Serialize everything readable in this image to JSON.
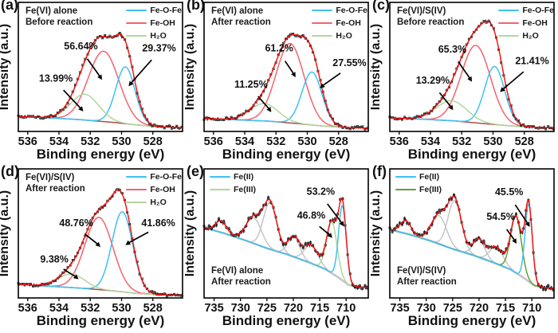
{
  "figure": {
    "xlabel": "Binding energy (eV)",
    "ylabel": "Intensity (a.u.)",
    "background": "#FFFFFF",
    "colors": {
      "envelope_red": "#FF1010",
      "data_black": "#151515",
      "fe_o_fe_cyan": "#3EC1F4",
      "fe_oh_pink": "#F2646E",
      "h2o_light_green": "#B2D79E",
      "fe2_cyan": "#3EC1F4",
      "fe3_light_green": "#B2D79E",
      "fe3_dark_green": "#5FA03C",
      "o1s_baseline_maroon": "#A84A4A",
      "fe2p_component_gray": "#C6C6C6",
      "fe2p_baseline_gray": "#8B8B8B"
    }
  },
  "chart_data": [
    {
      "id": "a",
      "type": "line",
      "panel_label": "(a)",
      "condition": [
        "Fe(VI) alone",
        "Before reaction"
      ],
      "xlabel": "Binding energy (eV)",
      "ylabel": "Intensity (a.u.)",
      "xlim": [
        536.6,
        526.1
      ],
      "x_ticks": [
        536,
        534,
        532,
        530,
        528
      ],
      "legend": [
        {
          "label": "Fe-O-Fe",
          "color": "#3EC1F4"
        },
        {
          "label": "Fe-OH",
          "color": "#F2646E"
        },
        {
          "label": "H₂O",
          "color": "#B2D79E"
        }
      ],
      "percentages": {
        "Fe-O-Fe": "29.37%",
        "Fe-OH": "56.64%",
        "H₂O": "13.99%"
      },
      "components": [
        {
          "name": "Fe-OH",
          "color": "#F2646E",
          "center": 531.15,
          "height": 0.545,
          "hwhm": 1.15
        },
        {
          "name": "Fe-O-Fe",
          "color": "#3EC1F4",
          "center": 529.75,
          "height": 0.44,
          "hwhm": 0.72
        },
        {
          "name": "H₂O",
          "color": "#B2D79E",
          "center": 532.35,
          "height": 0.2,
          "hwhm": 1.05
        }
      ],
      "baseline": {
        "color": "#A84A4A",
        "width": 1.5,
        "points": [
          [
            536.6,
            0.115
          ],
          [
            534.5,
            0.105
          ],
          [
            532.5,
            0.09
          ],
          [
            530.5,
            0.07
          ],
          [
            529,
            0.05
          ],
          [
            527.5,
            0.035
          ],
          [
            526.1,
            0.03
          ]
        ]
      },
      "envelope_color": "#FF1010",
      "data_color": "#151515",
      "data_style": "squares",
      "annotations": [
        {
          "text": "56.64%",
          "tx": 532.6,
          "ty": 0.66,
          "ax": 531.25,
          "ay": 0.4
        },
        {
          "text": "29.37%",
          "tx": 527.6,
          "ty": 0.645,
          "ax": 529.55,
          "ay": 0.35
        },
        {
          "text": "13.99%",
          "tx": 534.2,
          "ty": 0.41,
          "ax": 532.45,
          "ay": 0.155
        }
      ]
    },
    {
      "id": "b",
      "type": "line",
      "panel_label": "(b)",
      "condition": [
        "Fe(VI) alone",
        "After reaction"
      ],
      "xlabel": "Binding energy (eV)",
      "ylabel": "Intensity (a.u.)",
      "xlim": [
        536.6,
        526.1
      ],
      "x_ticks": [
        536,
        534,
        532,
        530,
        528
      ],
      "legend": [
        {
          "label": "Fe-O-Fe",
          "color": "#3EC1F4"
        },
        {
          "label": "Fe-OH",
          "color": "#F2646E"
        },
        {
          "label": "H₂O",
          "color": "#B2D79E"
        }
      ],
      "percentages": {
        "Fe-O-Fe": "27.55%",
        "Fe-OH": "61.2%",
        "H₂O": "11.25%"
      },
      "components": [
        {
          "name": "Fe-OH",
          "color": "#F2646E",
          "center": 531.1,
          "height": 0.615,
          "hwhm": 1.05
        },
        {
          "name": "Fe-O-Fe",
          "color": "#3EC1F4",
          "center": 529.7,
          "height": 0.41,
          "hwhm": 0.75
        },
        {
          "name": "H₂O",
          "color": "#B2D79E",
          "center": 532.75,
          "height": 0.135,
          "hwhm": 1.05
        }
      ],
      "baseline": {
        "color": "#A84A4A",
        "width": 1.5,
        "points": [
          [
            536.6,
            0.1
          ],
          [
            534.5,
            0.09
          ],
          [
            532.5,
            0.08
          ],
          [
            530.5,
            0.06
          ],
          [
            529,
            0.042
          ],
          [
            527.5,
            0.03
          ],
          [
            526.1,
            0.025
          ]
        ]
      },
      "envelope_color": "#FF1010",
      "data_color": "#151515",
      "data_style": "squares",
      "annotations": [
        {
          "text": "61.2%",
          "tx": 531.8,
          "ty": 0.645,
          "ax": 530.75,
          "ay": 0.42
        },
        {
          "text": "27.55%",
          "tx": 527.3,
          "ty": 0.53,
          "ax": 529.2,
          "ay": 0.335
        },
        {
          "text": "11.25%",
          "tx": 533.6,
          "ty": 0.365,
          "ax": 532.3,
          "ay": 0.15
        }
      ]
    },
    {
      "id": "c",
      "type": "line",
      "panel_label": "(c)",
      "condition": [
        "Fe(VI)/S(IV)",
        "Before reaction"
      ],
      "xlabel": "Binding energy (eV)",
      "ylabel": "Intensity (a.u.)",
      "xlim": [
        536.6,
        526.1
      ],
      "x_ticks": [
        536,
        534,
        532,
        530,
        528
      ],
      "legend": [
        {
          "label": "Fe-O-Fe",
          "color": "#3EC1F4"
        },
        {
          "label": "Fe-OH",
          "color": "#F2646E"
        },
        {
          "label": "H₂O",
          "color": "#B2D79E"
        }
      ],
      "percentages": {
        "Fe-O-Fe": "21.41%",
        "Fe-OH": "65.3%",
        "H₂O": "13.29%"
      },
      "components": [
        {
          "name": "Fe-OH",
          "color": "#F2646E",
          "center": 531.1,
          "height": 0.6,
          "hwhm": 1.1
        },
        {
          "name": "Fe-O-Fe",
          "color": "#3EC1F4",
          "center": 529.9,
          "height": 0.45,
          "hwhm": 0.75
        },
        {
          "name": "H₂O",
          "color": "#B2D79E",
          "center": 532.65,
          "height": 0.155,
          "hwhm": 1.15
        }
      ],
      "baseline": {
        "color": "#A84A4A",
        "width": 1.5,
        "points": [
          [
            536.6,
            0.105
          ],
          [
            534.5,
            0.095
          ],
          [
            532.5,
            0.082
          ],
          [
            530.5,
            0.06
          ],
          [
            529,
            0.045
          ],
          [
            527.5,
            0.032
          ],
          [
            526.1,
            0.028
          ]
        ]
      },
      "envelope_color": "#FF1010",
      "data_color": "#151515",
      "data_style": "squares",
      "annotations": [
        {
          "text": "65.3%",
          "tx": 532.6,
          "ty": 0.635,
          "ax": 531.35,
          "ay": 0.385
        },
        {
          "text": "21.41%",
          "tx": 527.5,
          "ty": 0.545,
          "ax": 529.55,
          "ay": 0.305
        },
        {
          "text": "13.29%",
          "tx": 533.85,
          "ty": 0.395,
          "ax": 532.55,
          "ay": 0.165
        }
      ]
    },
    {
      "id": "d",
      "type": "line",
      "panel_label": "(d)",
      "condition": [
        "Fe(VI)/S(IV)",
        "After reaction"
      ],
      "xlabel": "Binding energy (eV)",
      "ylabel": "Intensity (a.u.)",
      "xlim": [
        536.6,
        526.1
      ],
      "x_ticks": [
        536,
        534,
        532,
        530,
        528
      ],
      "legend": [
        {
          "label": "Fe-O-Fe",
          "color": "#3EC1F4"
        },
        {
          "label": "Fe-OH",
          "color": "#F2646E"
        },
        {
          "label": "H₂O",
          "color": "#B2D79E"
        }
      ],
      "percentages": {
        "Fe-O-Fe": "41.86%",
        "Fe-OH": "48.76%",
        "H₂O": "9.38%"
      },
      "components": [
        {
          "name": "Fe-OH",
          "color": "#F2646E",
          "center": 531.45,
          "height": 0.56,
          "hwhm": 1.05
        },
        {
          "name": "Fe-O-Fe",
          "color": "#3EC1F4",
          "center": 529.95,
          "height": 0.62,
          "hwhm": 0.78
        },
        {
          "name": "H₂O",
          "color": "#B2D79E",
          "center": 533.2,
          "height": 0.105,
          "hwhm": 1.0
        }
      ],
      "baseline": {
        "color": "#A84A4A",
        "width": 1.5,
        "points": [
          [
            536.6,
            0.105
          ],
          [
            534.5,
            0.09
          ],
          [
            532.5,
            0.075
          ],
          [
            530.5,
            0.055
          ],
          [
            529,
            0.035
          ],
          [
            527.5,
            0.025
          ],
          [
            526.1,
            0.02
          ]
        ]
      },
      "envelope_color": "#FF1010",
      "data_color": "#151515",
      "data_style": "squares",
      "annotations": [
        {
          "text": "48.76%",
          "tx": 532.9,
          "ty": 0.58,
          "ax": 531.35,
          "ay": 0.395
        },
        {
          "text": "41.86%",
          "tx": 527.65,
          "ty": 0.58,
          "ax": 529.75,
          "ay": 0.41
        },
        {
          "text": "9.38%",
          "tx": 534.3,
          "ty": 0.3,
          "ax": 532.75,
          "ay": 0.145
        }
      ]
    },
    {
      "id": "e",
      "type": "line",
      "panel_label": "(e)",
      "condition": [
        "Fe(VI) alone",
        "After reaction"
      ],
      "xlabel": "Binding energy (eV)",
      "ylabel": "Intensity (a.u.)",
      "xlim": [
        736.9,
        705.8
      ],
      "x_ticks": [
        735,
        730,
        725,
        720,
        715,
        710
      ],
      "legend": [
        {
          "label": "Fe(II)",
          "color": "#3EC1F4"
        },
        {
          "label": "Fe(III)",
          "color": "#B2D79E"
        }
      ],
      "percentages": {
        "Fe(II)": "53.2%",
        "Fe(III)": "46.8%"
      },
      "components": [
        {
          "name": "satellite",
          "color": "#C6C6C6",
          "center": 733.7,
          "height": 0.09,
          "hwhm": 1.2
        },
        {
          "name": "satellite",
          "color": "#C6C6C6",
          "center": 727.5,
          "height": 0.2,
          "hwhm": 1.7
        },
        {
          "name": "Fe 2p1/2",
          "color": "#C6C6C6",
          "center": 724.4,
          "height": 0.36,
          "hwhm": 1.5
        },
        {
          "name": "satellite",
          "color": "#C6C6C6",
          "center": 719.9,
          "height": 0.16,
          "hwhm": 1.3
        },
        {
          "name": "satellite",
          "color": "#C6C6C6",
          "center": 716.6,
          "height": 0.14,
          "hwhm": 1.5
        },
        {
          "name": "Fe(III)",
          "color": "#B2D79E",
          "center": 712.7,
          "height": 0.4,
          "hwhm": 1.15
        },
        {
          "name": "Fe(II)",
          "color": "#3EC1F4",
          "center": 710.7,
          "height": 0.58,
          "hwhm": 0.85
        }
      ],
      "baseline": {
        "color": "#8B8B8B",
        "width": 2.2,
        "points": [
          [
            736.9,
            0.545
          ],
          [
            733,
            0.5
          ],
          [
            729,
            0.445
          ],
          [
            725,
            0.385
          ],
          [
            721,
            0.335
          ],
          [
            717,
            0.275
          ],
          [
            714,
            0.225
          ],
          [
            711.5,
            0.16
          ],
          [
            709.5,
            0.1
          ],
          [
            707.5,
            0.085
          ],
          [
            705.8,
            0.08
          ]
        ]
      },
      "envelope_color": "#FF1010",
      "data_color": "#151515",
      "data_style": "errorbars",
      "annotations": [
        {
          "text": "53.2%",
          "tx": 714.8,
          "ty": 0.825,
          "ax": 710.4,
          "ay": 0.555
        },
        {
          "text": "46.8%",
          "tx": 716.6,
          "ty": 0.64,
          "ax": 712.6,
          "ay": 0.465
        }
      ]
    },
    {
      "id": "f",
      "type": "line",
      "panel_label": "(f)",
      "condition": [
        "Fe(VI)/S(IV)",
        "After reaction"
      ],
      "xlabel": "Binding energy (eV)",
      "ylabel": "Intensity (a.u.)",
      "xlim": [
        736.9,
        705.8
      ],
      "x_ticks": [
        735,
        730,
        725,
        720,
        715,
        710
      ],
      "legend": [
        {
          "label": "Fe(II)",
          "color": "#3EC1F4"
        },
        {
          "label": "Fe(III)",
          "color": "#5FA03C"
        }
      ],
      "percentages": {
        "Fe(II)": "45.5%",
        "Fe(III)": "54.5%"
      },
      "components": [
        {
          "name": "satellite",
          "color": "#C6C6C6",
          "center": 733.9,
          "height": 0.1,
          "hwhm": 1.2
        },
        {
          "name": "satellite",
          "color": "#C6C6C6",
          "center": 727.6,
          "height": 0.22,
          "hwhm": 1.7
        },
        {
          "name": "Fe 2p1/2",
          "color": "#C6C6C6",
          "center": 724.6,
          "height": 0.38,
          "hwhm": 1.5
        },
        {
          "name": "satellite",
          "color": "#C6C6C6",
          "center": 720.0,
          "height": 0.14,
          "hwhm": 1.3
        },
        {
          "name": "satellite",
          "color": "#C6C6C6",
          "center": 716.7,
          "height": 0.13,
          "hwhm": 1.5
        },
        {
          "name": "Fe(III)",
          "color": "#5FA03C",
          "center": 713.0,
          "height": 0.44,
          "hwhm": 1.2
        },
        {
          "name": "Fe(II)",
          "color": "#3EC1F4",
          "center": 710.6,
          "height": 0.6,
          "hwhm": 0.8
        }
      ],
      "baseline": {
        "color": "#8B8B8B",
        "width": 2.2,
        "points": [
          [
            736.9,
            0.53
          ],
          [
            733,
            0.49
          ],
          [
            729,
            0.44
          ],
          [
            725,
            0.38
          ],
          [
            721,
            0.33
          ],
          [
            717,
            0.27
          ],
          [
            714,
            0.22
          ],
          [
            711.5,
            0.155
          ],
          [
            709.5,
            0.095
          ],
          [
            707.5,
            0.08
          ],
          [
            705.8,
            0.075
          ]
        ]
      },
      "envelope_color": "#FF1010",
      "data_color": "#151515",
      "data_style": "errorbars",
      "annotations": [
        {
          "text": "45.5%",
          "tx": 714.3,
          "ty": 0.82,
          "ax": 710.4,
          "ay": 0.55
        },
        {
          "text": "54.5%",
          "tx": 715.9,
          "ty": 0.63,
          "ax": 712.9,
          "ay": 0.42
        }
      ]
    }
  ]
}
